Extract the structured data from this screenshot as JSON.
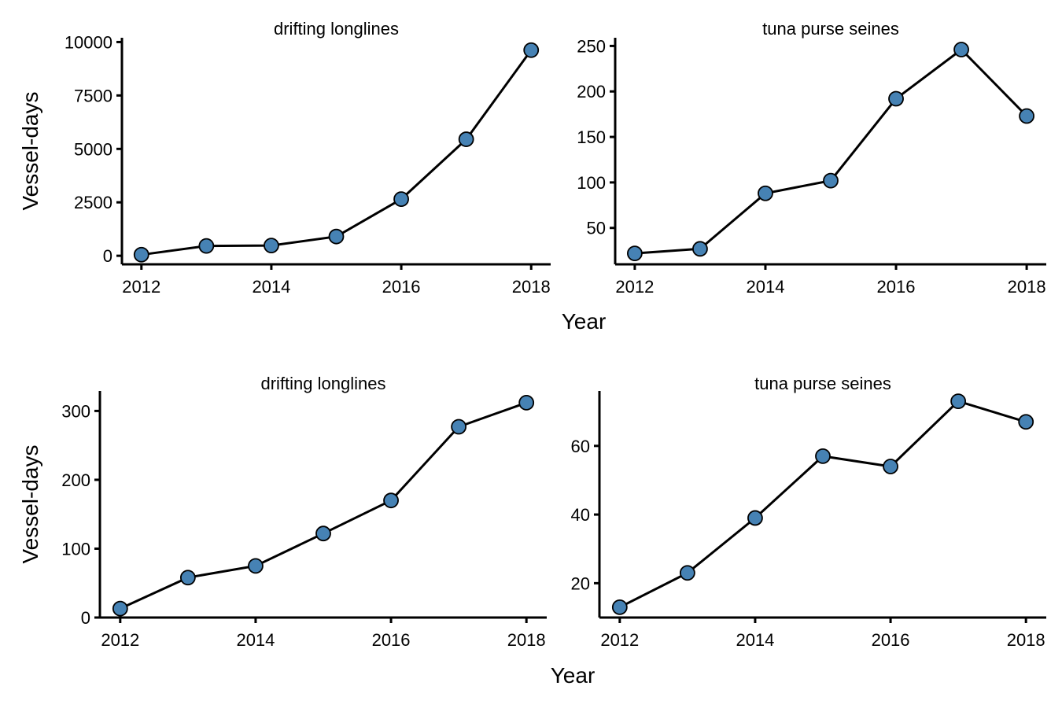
{
  "chart_data": [
    {
      "type": "line",
      "title": "drifting longlines",
      "xlabel": "Year",
      "ylabel": "Vessel-days",
      "x": [
        2012,
        2013,
        2014,
        2015,
        2016,
        2017,
        2018
      ],
      "series": [
        {
          "values": [
            50,
            460,
            480,
            900,
            2650,
            5450,
            9620
          ]
        }
      ],
      "xticks": [
        2012,
        2014,
        2016,
        2018
      ],
      "yticks": [
        0,
        2500,
        5000,
        7500,
        10000
      ],
      "xlim": [
        2011.7,
        2018.3
      ],
      "ylim": [
        -400,
        10200
      ]
    },
    {
      "type": "line",
      "title": "tuna purse seines",
      "xlabel": "Year",
      "ylabel": "",
      "x": [
        2012,
        2013,
        2014,
        2015,
        2016,
        2017,
        2018
      ],
      "series": [
        {
          "values": [
            22,
            27,
            88,
            102,
            192,
            246,
            173
          ]
        }
      ],
      "xticks": [
        2012,
        2014,
        2016,
        2018
      ],
      "yticks": [
        50,
        100,
        150,
        200,
        250
      ],
      "xlim": [
        2011.7,
        2018.3
      ],
      "ylim": [
        10,
        259
      ]
    },
    {
      "type": "line",
      "title": "drifting longlines",
      "xlabel": "Year",
      "ylabel": "Vessel-days",
      "x": [
        2012,
        2013,
        2014,
        2015,
        2016,
        2017,
        2018
      ],
      "series": [
        {
          "values": [
            13,
            58,
            75,
            122,
            170,
            277,
            312
          ]
        }
      ],
      "xticks": [
        2012,
        2014,
        2016,
        2018
      ],
      "yticks": [
        0,
        100,
        200,
        300
      ],
      "xlim": [
        2011.7,
        2018.3
      ],
      "ylim": [
        0,
        329
      ]
    },
    {
      "type": "line",
      "title": "tuna purse seines",
      "xlabel": "Year",
      "ylabel": "",
      "x": [
        2012,
        2013,
        2014,
        2015,
        2016,
        2017,
        2018
      ],
      "series": [
        {
          "values": [
            13,
            23,
            39,
            57,
            54,
            73,
            67
          ]
        }
      ],
      "xticks": [
        2012,
        2014,
        2016,
        2018
      ],
      "yticks": [
        20,
        40,
        60
      ],
      "xlim": [
        2011.7,
        2018.3
      ],
      "ylim": [
        10,
        76
      ]
    }
  ],
  "shared_labels": {
    "top_xlabel": "Year",
    "bottom_xlabel": "Year"
  },
  "colors": {
    "point_fill": "#4682b4",
    "line": "#000000"
  }
}
